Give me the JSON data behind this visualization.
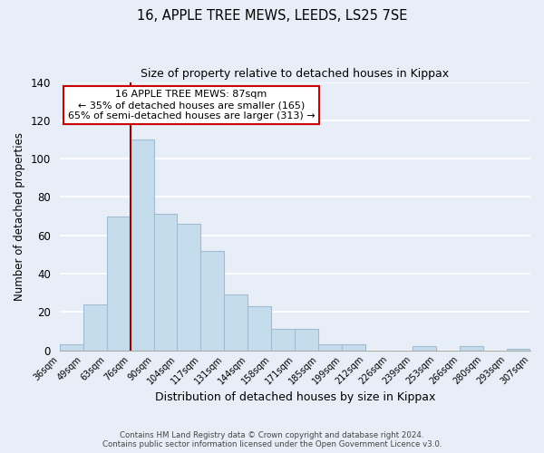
{
  "title": "16, APPLE TREE MEWS, LEEDS, LS25 7SE",
  "subtitle": "Size of property relative to detached houses in Kippax",
  "xlabel": "Distribution of detached houses by size in Kippax",
  "ylabel": "Number of detached properties",
  "footer_line1": "Contains HM Land Registry data © Crown copyright and database right 2024.",
  "footer_line2": "Contains public sector information licensed under the Open Government Licence v3.0.",
  "bin_labels": [
    "36sqm",
    "49sqm",
    "63sqm",
    "76sqm",
    "90sqm",
    "104sqm",
    "117sqm",
    "131sqm",
    "144sqm",
    "158sqm",
    "171sqm",
    "185sqm",
    "199sqm",
    "212sqm",
    "226sqm",
    "239sqm",
    "253sqm",
    "266sqm",
    "280sqm",
    "293sqm",
    "307sqm"
  ],
  "bar_values": [
    3,
    24,
    70,
    110,
    71,
    66,
    52,
    29,
    23,
    11,
    11,
    3,
    3,
    0,
    0,
    2,
    0,
    2,
    0,
    1
  ],
  "bar_color": "#c5dced",
  "vline_position": 3,
  "vline_color": "#990000",
  "annotation_title": "16 APPLE TREE MEWS: 87sqm",
  "annotation_line1": "← 35% of detached houses are smaller (165)",
  "annotation_line2": "65% of semi-detached houses are larger (313) →",
  "annotation_box_edge": "#cc0000",
  "ylim": [
    0,
    140
  ],
  "yticks": [
    0,
    20,
    40,
    60,
    80,
    100,
    120,
    140
  ],
  "background_color": "#e8eef7"
}
